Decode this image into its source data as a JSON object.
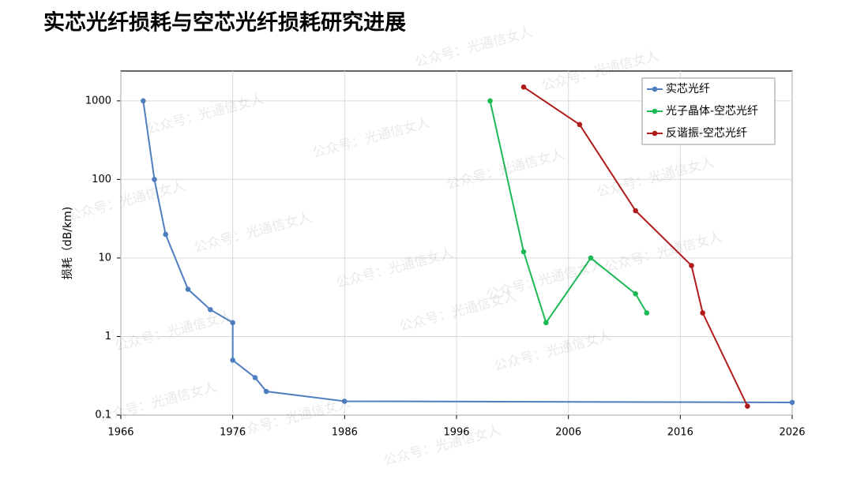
{
  "chart_data": {
    "type": "line",
    "title": "实芯光纤损耗与空芯光纤损耗研究进展",
    "y_label": "损耗（dB/km)",
    "watermark": "公众号：光通信女人",
    "log_y": true,
    "grid": true,
    "legend": "top-right",
    "xlim": [
      1966,
      2026
    ],
    "xticks": [
      1966,
      1976,
      1986,
      1996,
      2006,
      2016,
      2026
    ],
    "ylim": [
      0.1,
      2400
    ],
    "yticks": [
      0.1,
      1,
      10,
      100,
      1000
    ],
    "series": [
      {
        "name": "实芯光纤",
        "color": "#4f7ec0",
        "x": [
          1968,
          1969,
          1970,
          1972,
          1974,
          1976,
          1976,
          1978,
          1979,
          1986,
          2026
        ],
        "values": [
          1000,
          100,
          20,
          4,
          2.2,
          1.5,
          0.5,
          0.3,
          0.2,
          0.15,
          0.145
        ]
      },
      {
        "name": "光子晶体-空芯光纤",
        "color": "#1db954",
        "x": [
          1999,
          2002,
          2004,
          2008,
          2012,
          2013
        ],
        "values": [
          1000,
          12,
          1.5,
          10,
          3.5,
          2.0
        ]
      },
      {
        "name": "反谐振-空芯光纤",
        "color": "#b01c1c",
        "x": [
          2002,
          2007,
          2012,
          2017,
          2018,
          2022
        ],
        "values": [
          1500,
          500,
          40,
          8,
          2,
          0.13
        ]
      }
    ]
  }
}
